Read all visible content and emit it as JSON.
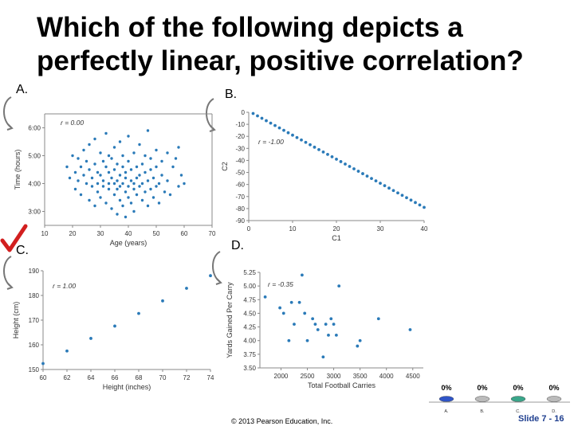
{
  "slide": {
    "title": "Which of the following depicts a\nperfectly linear, positive correlation?",
    "labels": [
      "A.",
      "B.",
      "C.",
      "D."
    ],
    "footer_copyright": "© 2013 Pearson Education, Inc.",
    "footer_slide": "Slide 7 - 16",
    "check_color": "#d21f1f",
    "point_color": "#2a7ab8"
  },
  "poll": {
    "options": [
      {
        "pct": "0%",
        "label": "A."
      },
      {
        "pct": "0%",
        "label": "B."
      },
      {
        "pct": "0%",
        "label": "C."
      },
      {
        "pct": "0%",
        "label": "D."
      }
    ]
  },
  "chart_data": [
    {
      "type": "scatter",
      "panel": "A",
      "annotation": "r = 0.00",
      "xlabel": "Age (years)",
      "ylabel": "Time (hours)",
      "xlim": [
        10,
        70
      ],
      "ylim": [
        2.5,
        6.5
      ],
      "xticks": [
        "10",
        "20",
        "30",
        "40",
        "50",
        "60",
        "70"
      ],
      "yticks": [
        "3:00",
        "4:00",
        "5:00",
        "6:00"
      ],
      "points": [
        [
          18,
          4.6
        ],
        [
          19,
          4.2
        ],
        [
          20,
          5.0
        ],
        [
          21,
          4.4
        ],
        [
          21,
          3.8
        ],
        [
          22,
          4.9
        ],
        [
          22,
          4.1
        ],
        [
          23,
          4.6
        ],
        [
          23,
          3.6
        ],
        [
          24,
          5.2
        ],
        [
          24,
          4.3
        ],
        [
          25,
          4.0
        ],
        [
          25,
          4.8
        ],
        [
          26,
          3.4
        ],
        [
          26,
          4.5
        ],
        [
          26,
          5.4
        ],
        [
          27,
          3.9
        ],
        [
          27,
          4.2
        ],
        [
          28,
          4.7
        ],
        [
          28,
          3.2
        ],
        [
          28,
          5.6
        ],
        [
          29,
          4.0
        ],
        [
          29,
          4.4
        ],
        [
          29,
          3.7
        ],
        [
          30,
          5.1
        ],
        [
          30,
          4.3
        ],
        [
          30,
          3.5
        ],
        [
          31,
          4.8
        ],
        [
          31,
          3.9
        ],
        [
          31,
          4.1
        ],
        [
          32,
          5.8
        ],
        [
          32,
          3.3
        ],
        [
          32,
          4.6
        ],
        [
          33,
          4.0
        ],
        [
          33,
          3.8
        ],
        [
          33,
          5.0
        ],
        [
          33,
          4.4
        ],
        [
          34,
          3.1
        ],
        [
          34,
          4.2
        ],
        [
          34,
          4.9
        ],
        [
          35,
          3.6
        ],
        [
          35,
          4.5
        ],
        [
          35,
          4.0
        ],
        [
          35,
          5.3
        ],
        [
          36,
          2.9
        ],
        [
          36,
          4.1
        ],
        [
          36,
          3.8
        ],
        [
          36,
          4.7
        ],
        [
          37,
          3.4
        ],
        [
          37,
          4.3
        ],
        [
          37,
          5.5
        ],
        [
          37,
          3.9
        ],
        [
          38,
          4.0
        ],
        [
          38,
          3.2
        ],
        [
          38,
          4.6
        ],
        [
          38,
          5.0
        ],
        [
          39,
          3.7
        ],
        [
          39,
          4.4
        ],
        [
          39,
          2.8
        ],
        [
          39,
          4.2
        ],
        [
          40,
          3.9
        ],
        [
          40,
          4.8
        ],
        [
          40,
          3.5
        ],
        [
          40,
          5.7
        ],
        [
          41,
          4.1
        ],
        [
          41,
          3.3
        ],
        [
          41,
          4.5
        ],
        [
          42,
          3.8
        ],
        [
          42,
          5.1
        ],
        [
          42,
          4.0
        ],
        [
          42,
          3.0
        ],
        [
          43,
          4.6
        ],
        [
          43,
          3.6
        ],
        [
          43,
          4.2
        ],
        [
          44,
          5.4
        ],
        [
          44,
          3.9
        ],
        [
          44,
          4.3
        ],
        [
          45,
          3.4
        ],
        [
          45,
          4.7
        ],
        [
          45,
          4.0
        ],
        [
          46,
          5.0
        ],
        [
          46,
          3.7
        ],
        [
          46,
          4.4
        ],
        [
          47,
          3.2
        ],
        [
          47,
          4.1
        ],
        [
          47,
          5.9
        ],
        [
          48,
          4.5
        ],
        [
          48,
          3.8
        ],
        [
          48,
          4.9
        ],
        [
          49,
          3.5
        ],
        [
          49,
          4.2
        ],
        [
          50,
          4.6
        ],
        [
          50,
          3.9
        ],
        [
          50,
          5.2
        ],
        [
          51,
          4.0
        ],
        [
          51,
          3.3
        ],
        [
          52,
          4.8
        ],
        [
          52,
          4.3
        ],
        [
          53,
          3.7
        ],
        [
          54,
          5.1
        ],
        [
          54,
          4.1
        ],
        [
          55,
          3.6
        ],
        [
          56,
          4.6
        ],
        [
          57,
          4.9
        ],
        [
          58,
          3.9
        ],
        [
          58,
          5.3
        ],
        [
          59,
          4.3
        ],
        [
          60,
          4.0
        ]
      ]
    },
    {
      "type": "scatter",
      "panel": "B",
      "annotation": "r = -1.00",
      "xlabel": "C1",
      "ylabel": "C2",
      "xlim": [
        0,
        40
      ],
      "ylim": [
        -90,
        0
      ],
      "xticks": [
        "0",
        "10",
        "20",
        "30",
        "40"
      ],
      "yticks": [
        "0",
        "-10",
        "-20",
        "-30",
        "-40",
        "-50",
        "-60",
        "-70",
        "-80",
        "-90"
      ],
      "points": [
        [
          1,
          -1
        ],
        [
          2,
          -3
        ],
        [
          3,
          -5
        ],
        [
          4,
          -7
        ],
        [
          5,
          -9
        ],
        [
          6,
          -11
        ],
        [
          7,
          -13
        ],
        [
          8,
          -15
        ],
        [
          9,
          -17
        ],
        [
          10,
          -19
        ],
        [
          11,
          -21
        ],
        [
          12,
          -23
        ],
        [
          13,
          -25
        ],
        [
          14,
          -27
        ],
        [
          15,
          -29
        ],
        [
          16,
          -31
        ],
        [
          17,
          -33
        ],
        [
          18,
          -35
        ],
        [
          19,
          -37
        ],
        [
          20,
          -39
        ],
        [
          21,
          -41
        ],
        [
          22,
          -43
        ],
        [
          23,
          -45
        ],
        [
          24,
          -47
        ],
        [
          25,
          -49
        ],
        [
          26,
          -51
        ],
        [
          27,
          -53
        ],
        [
          28,
          -55
        ],
        [
          29,
          -57
        ],
        [
          30,
          -59
        ],
        [
          31,
          -61
        ],
        [
          32,
          -63
        ],
        [
          33,
          -65
        ],
        [
          34,
          -67
        ],
        [
          35,
          -69
        ],
        [
          36,
          -71
        ],
        [
          37,
          -73
        ],
        [
          38,
          -75
        ],
        [
          39,
          -77
        ],
        [
          40,
          -79
        ]
      ]
    },
    {
      "type": "scatter",
      "panel": "C",
      "annotation": "r = 1.00",
      "xlabel": "Height (inches)",
      "ylabel": "Height (cm)",
      "xlim": [
        60,
        74
      ],
      "ylim": [
        150,
        190
      ],
      "xticks": [
        "60",
        "62",
        "64",
        "66",
        "68",
        "70",
        "72",
        "74"
      ],
      "yticks": [
        "150",
        "160",
        "170",
        "180",
        "190"
      ],
      "points": [
        [
          60,
          152.4
        ],
        [
          62,
          157.5
        ],
        [
          64,
          162.6
        ],
        [
          66,
          167.6
        ],
        [
          68,
          172.7
        ],
        [
          70,
          177.8
        ],
        [
          72,
          182.9
        ],
        [
          74,
          188
        ]
      ]
    },
    {
      "type": "scatter",
      "panel": "D",
      "annotation": "r = -0.35",
      "xlabel": "Total Football Carries",
      "ylabel": "Yards Gained Per Carry",
      "xlim": [
        1600,
        4700
      ],
      "ylim": [
        3.5,
        5.25
      ],
      "xticks": [
        "2000",
        "2500",
        "3000",
        "3500",
        "4000",
        "4500"
      ],
      "yticks": [
        "3.50",
        "3.75",
        "4.00",
        "4.25",
        "4.50",
        "4.75",
        "5.00",
        "5.25"
      ],
      "points": [
        [
          1700,
          4.8
        ],
        [
          1980,
          4.6
        ],
        [
          2050,
          4.5
        ],
        [
          2150,
          4.0
        ],
        [
          2200,
          4.7
        ],
        [
          2250,
          4.3
        ],
        [
          2350,
          4.7
        ],
        [
          2400,
          5.2
        ],
        [
          2450,
          4.5
        ],
        [
          2500,
          4.0
        ],
        [
          2600,
          4.4
        ],
        [
          2650,
          4.3
        ],
        [
          2700,
          4.2
        ],
        [
          2800,
          3.7
        ],
        [
          2850,
          4.3
        ],
        [
          2900,
          4.1
        ],
        [
          2950,
          4.4
        ],
        [
          3000,
          4.3
        ],
        [
          3050,
          4.1
        ],
        [
          3100,
          5.0
        ],
        [
          3450,
          3.9
        ],
        [
          3500,
          4.0
        ],
        [
          3850,
          4.4
        ],
        [
          4450,
          4.2
        ]
      ]
    }
  ]
}
